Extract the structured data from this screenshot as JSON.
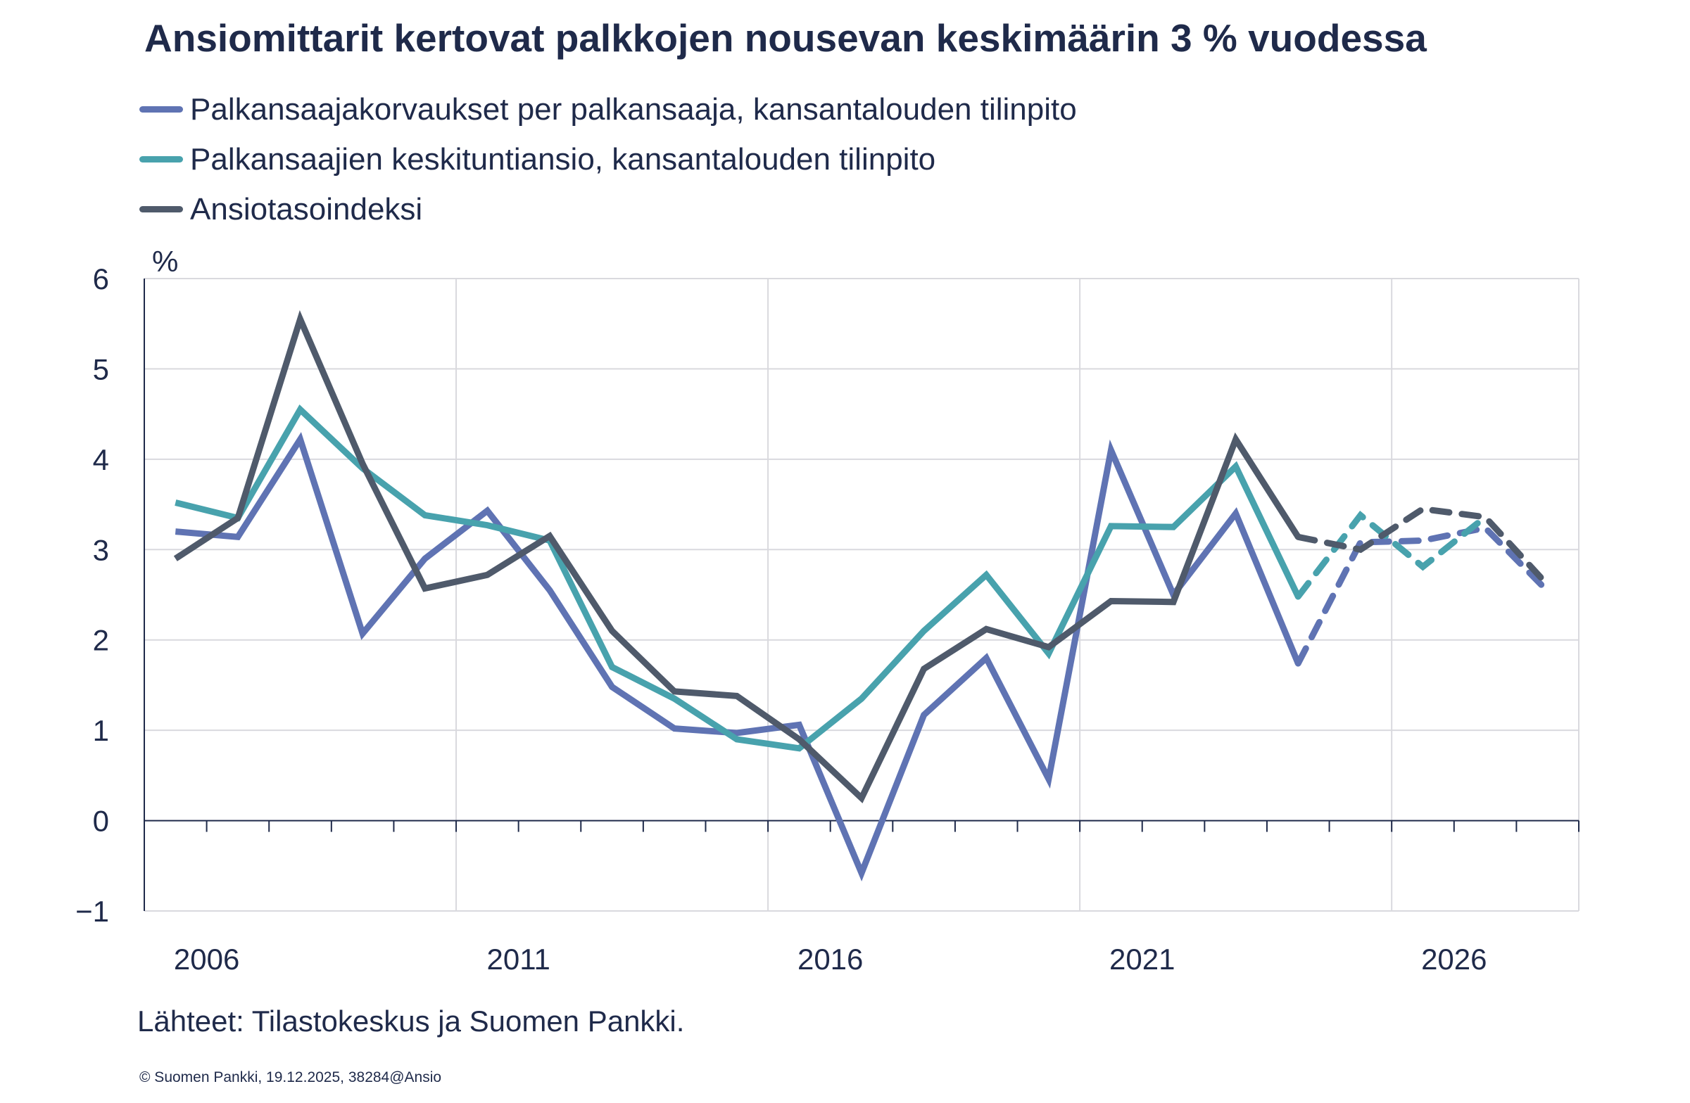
{
  "chart_data": {
    "type": "line",
    "title": "Ansiomittarit kertovat palkkojen nousevan keskimäärin 3 % vuodessa",
    "ylabel": "%",
    "xlabel": "",
    "ylim": [
      -1,
      6
    ],
    "yticks": [
      6,
      5,
      4,
      3,
      2,
      1,
      0,
      -1
    ],
    "ytick_labels": [
      "6",
      "5",
      "4",
      "3",
      "2",
      "1",
      "0",
      "−1"
    ],
    "x": [
      2006,
      2007,
      2008,
      2009,
      2010,
      2011,
      2012,
      2013,
      2014,
      2015,
      2016,
      2017,
      2018,
      2019,
      2020,
      2021,
      2022,
      2023,
      2024,
      2025,
      2026,
      2027,
      2028
    ],
    "xtick_labels": [
      "2006",
      "2011",
      "2016",
      "2021",
      "2026"
    ],
    "grid": true,
    "legend_position": "top-left",
    "forecast_from": 2024,
    "forecast_style": "dashed",
    "series": [
      {
        "name": "Palkansaajakorvaukset per palkansaaja, kansantalouden tilinpito",
        "color": "#5f73b3",
        "values": [
          3.2,
          3.14,
          4.22,
          2.07,
          2.9,
          3.43,
          2.55,
          1.48,
          1.02,
          0.97,
          1.06,
          -0.58,
          1.17,
          1.8,
          0.46,
          4.1,
          2.5,
          3.4,
          1.74,
          3.08,
          3.1,
          3.24,
          2.54
        ]
      },
      {
        "name": "Palkansaajien keskituntiansio, kansantalouden tilinpito",
        "color": "#48a2ad",
        "values": [
          3.52,
          3.35,
          4.55,
          3.9,
          3.38,
          3.27,
          3.1,
          1.7,
          1.35,
          0.9,
          0.8,
          1.35,
          2.1,
          2.72,
          1.85,
          3.26,
          3.25,
          3.92,
          2.48,
          3.38,
          2.81,
          3.36,
          null
        ]
      },
      {
        "name": "Ansiotasoindeksi",
        "color": "#4f5a6b",
        "values": [
          2.9,
          3.35,
          5.55,
          3.95,
          2.57,
          2.72,
          3.15,
          2.1,
          1.43,
          1.38,
          0.9,
          0.25,
          1.68,
          2.12,
          1.92,
          2.43,
          2.42,
          4.22,
          3.14,
          3.0,
          3.45,
          3.36,
          2.61
        ]
      }
    ],
    "source": "Lähteet: Tilastokeskus ja Suomen Pankki.",
    "copyright": "© Suomen Pankki, 19.12.2025, 38284@Ansio"
  }
}
